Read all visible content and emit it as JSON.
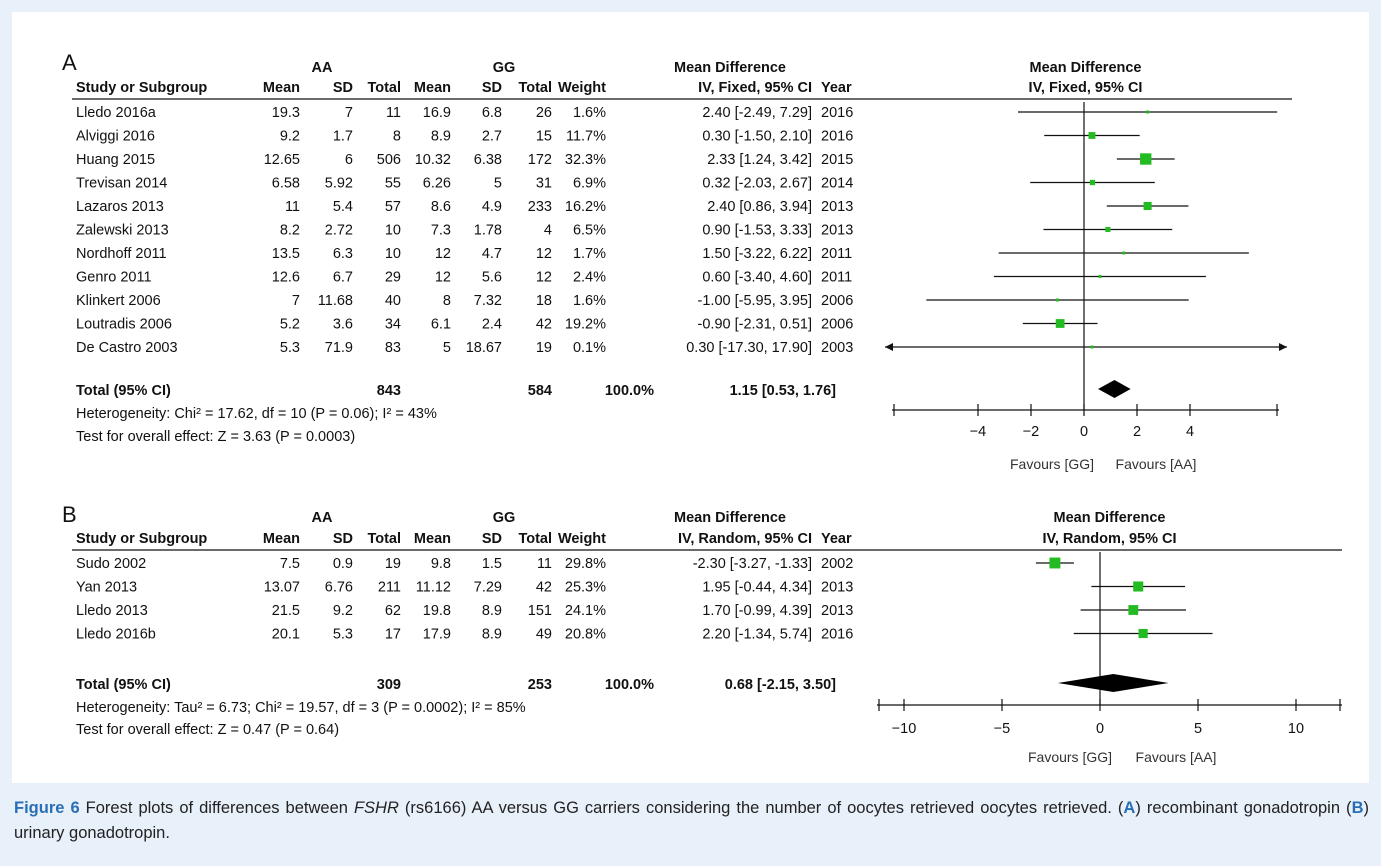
{
  "panels": [
    {
      "letter": "A",
      "group1": "AA",
      "group2": "GG",
      "headers": [
        "Study or Subgroup",
        "Mean",
        "SD",
        "Total",
        "Mean",
        "SD",
        "Total",
        "Weight",
        "IV, Fixed, 95% CI",
        "Year"
      ],
      "md_title": "Mean Difference",
      "plot_title": "Mean Difference",
      "plot_subtitle": "IV, Fixed, 95% CI",
      "rows": [
        {
          "study": "Lledo 2016a",
          "m1": "19.3",
          "sd1": "7",
          "n1": "11",
          "m2": "16.9",
          "sd2": "6.8",
          "n2": "26",
          "weight": "1.6%",
          "ci": "2.40 [-2.49, 7.29]",
          "year": "2016"
        },
        {
          "study": "Alviggi 2016",
          "m1": "9.2",
          "sd1": "1.7",
          "n1": "8",
          "m2": "8.9",
          "sd2": "2.7",
          "n2": "15",
          "weight": "11.7%",
          "ci": "0.30 [-1.50, 2.10]",
          "year": "2016"
        },
        {
          "study": "Huang 2015",
          "m1": "12.65",
          "sd1": "6",
          "n1": "506",
          "m2": "10.32",
          "sd2": "6.38",
          "n2": "172",
          "weight": "32.3%",
          "ci": "2.33 [1.24, 3.42]",
          "year": "2015"
        },
        {
          "study": "Trevisan 2014",
          "m1": "6.58",
          "sd1": "5.92",
          "n1": "55",
          "m2": "6.26",
          "sd2": "5",
          "n2": "31",
          "weight": "6.9%",
          "ci": "0.32 [-2.03, 2.67]",
          "year": "2014"
        },
        {
          "study": "Lazaros 2013",
          "m1": "11",
          "sd1": "5.4",
          "n1": "57",
          "m2": "8.6",
          "sd2": "4.9",
          "n2": "233",
          "weight": "16.2%",
          "ci": "2.40 [0.86, 3.94]",
          "year": "2013"
        },
        {
          "study": "Zalewski 2013",
          "m1": "8.2",
          "sd1": "2.72",
          "n1": "10",
          "m2": "7.3",
          "sd2": "1.78",
          "n2": "4",
          "weight": "6.5%",
          "ci": "0.90 [-1.53, 3.33]",
          "year": "2013"
        },
        {
          "study": "Nordhoff 2011",
          "m1": "13.5",
          "sd1": "6.3",
          "n1": "10",
          "m2": "12",
          "sd2": "4.7",
          "n2": "12",
          "weight": "1.7%",
          "ci": "1.50 [-3.22, 6.22]",
          "year": "2011"
        },
        {
          "study": "Genro 2011",
          "m1": "12.6",
          "sd1": "6.7",
          "n1": "29",
          "m2": "12",
          "sd2": "5.6",
          "n2": "12",
          "weight": "2.4%",
          "ci": "0.60 [-3.40, 4.60]",
          "year": "2011"
        },
        {
          "study": "Klinkert 2006",
          "m1": "7",
          "sd1": "11.68",
          "n1": "40",
          "m2": "8",
          "sd2": "7.32",
          "n2": "18",
          "weight": "1.6%",
          "ci": "-1.00 [-5.95, 3.95]",
          "year": "2006"
        },
        {
          "study": "Loutradis 2006",
          "m1": "5.2",
          "sd1": "3.6",
          "n1": "34",
          "m2": "6.1",
          "sd2": "2.4",
          "n2": "42",
          "weight": "19.2%",
          "ci": "-0.90 [-2.31, 0.51]",
          "year": "2006"
        },
        {
          "study": "De Castro 2003",
          "m1": "5.3",
          "sd1": "71.9",
          "n1": "83",
          "m2": "5",
          "sd2": "18.67",
          "n2": "19",
          "weight": "0.1%",
          "ci": "0.30 [-17.30, 17.90]",
          "year": "2003"
        }
      ],
      "total": {
        "label": "Total (95% CI)",
        "n1": "843",
        "n2": "584",
        "weight": "100.0%",
        "ci": "1.15 [0.53, 1.76]"
      },
      "heterogeneity": "Heterogeneity: Chi² = 17.62, df = 10 (P = 0.06); I² = 43%",
      "overall": "Test for overall effect: Z = 3.63 (P = 0.0003)",
      "favours_left": "Favours [GG]",
      "favours_right": "Favours [AA]"
    },
    {
      "letter": "B",
      "group1": "AA",
      "group2": "GG",
      "headers": [
        "Study or Subgroup",
        "Mean",
        "SD",
        "Total",
        "Mean",
        "SD",
        "Total",
        "Weight",
        "IV, Random, 95% CI",
        "Year"
      ],
      "md_title": "Mean Difference",
      "plot_title": "Mean Difference",
      "plot_subtitle": "IV, Random, 95% CI",
      "rows": [
        {
          "study": "Sudo 2002",
          "m1": "7.5",
          "sd1": "0.9",
          "n1": "19",
          "m2": "9.8",
          "sd2": "1.5",
          "n2": "11",
          "weight": "29.8%",
          "ci": "-2.30 [-3.27, -1.33]",
          "year": "2002"
        },
        {
          "study": "Yan 2013",
          "m1": "13.07",
          "sd1": "6.76",
          "n1": "211",
          "m2": "11.12",
          "sd2": "7.29",
          "n2": "42",
          "weight": "25.3%",
          "ci": "1.95 [-0.44, 4.34]",
          "year": "2013"
        },
        {
          "study": "Lledo 2013",
          "m1": "21.5",
          "sd1": "9.2",
          "n1": "62",
          "m2": "19.8",
          "sd2": "8.9",
          "n2": "151",
          "weight": "24.1%",
          "ci": "1.70 [-0.99, 4.39]",
          "year": "2013"
        },
        {
          "study": "Lledo 2016b",
          "m1": "20.1",
          "sd1": "5.3",
          "n1": "17",
          "m2": "17.9",
          "sd2": "8.9",
          "n2": "49",
          "weight": "20.8%",
          "ci": "2.20 [-1.34, 5.74]",
          "year": "2016"
        }
      ],
      "total": {
        "label": "Total (95% CI)",
        "n1": "309",
        "n2": "253",
        "weight": "100.0%",
        "ci": "0.68 [-2.15, 3.50]"
      },
      "heterogeneity": "Heterogeneity: Tau² = 6.73; Chi² = 19.57, df = 3 (P = 0.0002); I² = 85%",
      "overall": "Test for overall effect: Z = 0.47 (P = 0.64)",
      "favours_left": "Favours [GG]",
      "favours_right": "Favours [AA]"
    }
  ],
  "chart_data": [
    {
      "type": "forest",
      "title": "",
      "marker_color": "#22bb22",
      "xlim": [
        -6,
        6
      ],
      "xticks": [
        -4,
        -2,
        0,
        2,
        4
      ],
      "series": [
        {
          "study": "Lledo 2016a",
          "md": 2.4,
          "lo": -2.49,
          "hi": 7.29,
          "weight": 1.6
        },
        {
          "study": "Alviggi 2016",
          "md": 0.3,
          "lo": -1.5,
          "hi": 2.1,
          "weight": 11.7
        },
        {
          "study": "Huang 2015",
          "md": 2.33,
          "lo": 1.24,
          "hi": 3.42,
          "weight": 32.3
        },
        {
          "study": "Trevisan 2014",
          "md": 0.32,
          "lo": -2.03,
          "hi": 2.67,
          "weight": 6.9
        },
        {
          "study": "Lazaros 2013",
          "md": 2.4,
          "lo": 0.86,
          "hi": 3.94,
          "weight": 16.2
        },
        {
          "study": "Zalewski 2013",
          "md": 0.9,
          "lo": -1.53,
          "hi": 3.33,
          "weight": 6.5
        },
        {
          "study": "Nordhoff 2011",
          "md": 1.5,
          "lo": -3.22,
          "hi": 6.22,
          "weight": 1.7
        },
        {
          "study": "Genro 2011",
          "md": 0.6,
          "lo": -3.4,
          "hi": 4.6,
          "weight": 2.4
        },
        {
          "study": "Klinkert 2006",
          "md": -1.0,
          "lo": -5.95,
          "hi": 3.95,
          "weight": 1.6
        },
        {
          "study": "Loutradis 2006",
          "md": -0.9,
          "lo": -2.31,
          "hi": 0.51,
          "weight": 19.2
        },
        {
          "study": "De Castro 2003",
          "md": 0.3,
          "lo": -17.3,
          "hi": 17.9,
          "weight": 0.1
        }
      ],
      "pooled": {
        "md": 1.15,
        "lo": 0.53,
        "hi": 1.76
      }
    },
    {
      "type": "forest",
      "title": "",
      "marker_color": "#22bb22",
      "xlim": [
        -11.5,
        11.5
      ],
      "xticks": [
        -10,
        -5,
        0,
        5,
        10
      ],
      "series": [
        {
          "study": "Sudo 2002",
          "md": -2.3,
          "lo": -3.27,
          "hi": -1.33,
          "weight": 29.8
        },
        {
          "study": "Yan 2013",
          "md": 1.95,
          "lo": -0.44,
          "hi": 4.34,
          "weight": 25.3
        },
        {
          "study": "Lledo 2013",
          "md": 1.7,
          "lo": -0.99,
          "hi": 4.39,
          "weight": 24.1
        },
        {
          "study": "Lledo 2016b",
          "md": 2.2,
          "lo": -1.34,
          "hi": 5.74,
          "weight": 20.8
        }
      ],
      "pooled": {
        "md": 0.68,
        "lo": -2.15,
        "hi": 3.5
      }
    }
  ],
  "caption": {
    "label": "Figure 6",
    "t1": " Forest plots of differences between ",
    "gene": "FSHR",
    "t2": " (rs6166) AA versus GG carriers considering the number of oocytes retrieved oocytes retrieved. (",
    "a": "A",
    "t3": ") recombinant gonadotropin (",
    "b": "B",
    "t4": ") urinary gonadotropin."
  }
}
